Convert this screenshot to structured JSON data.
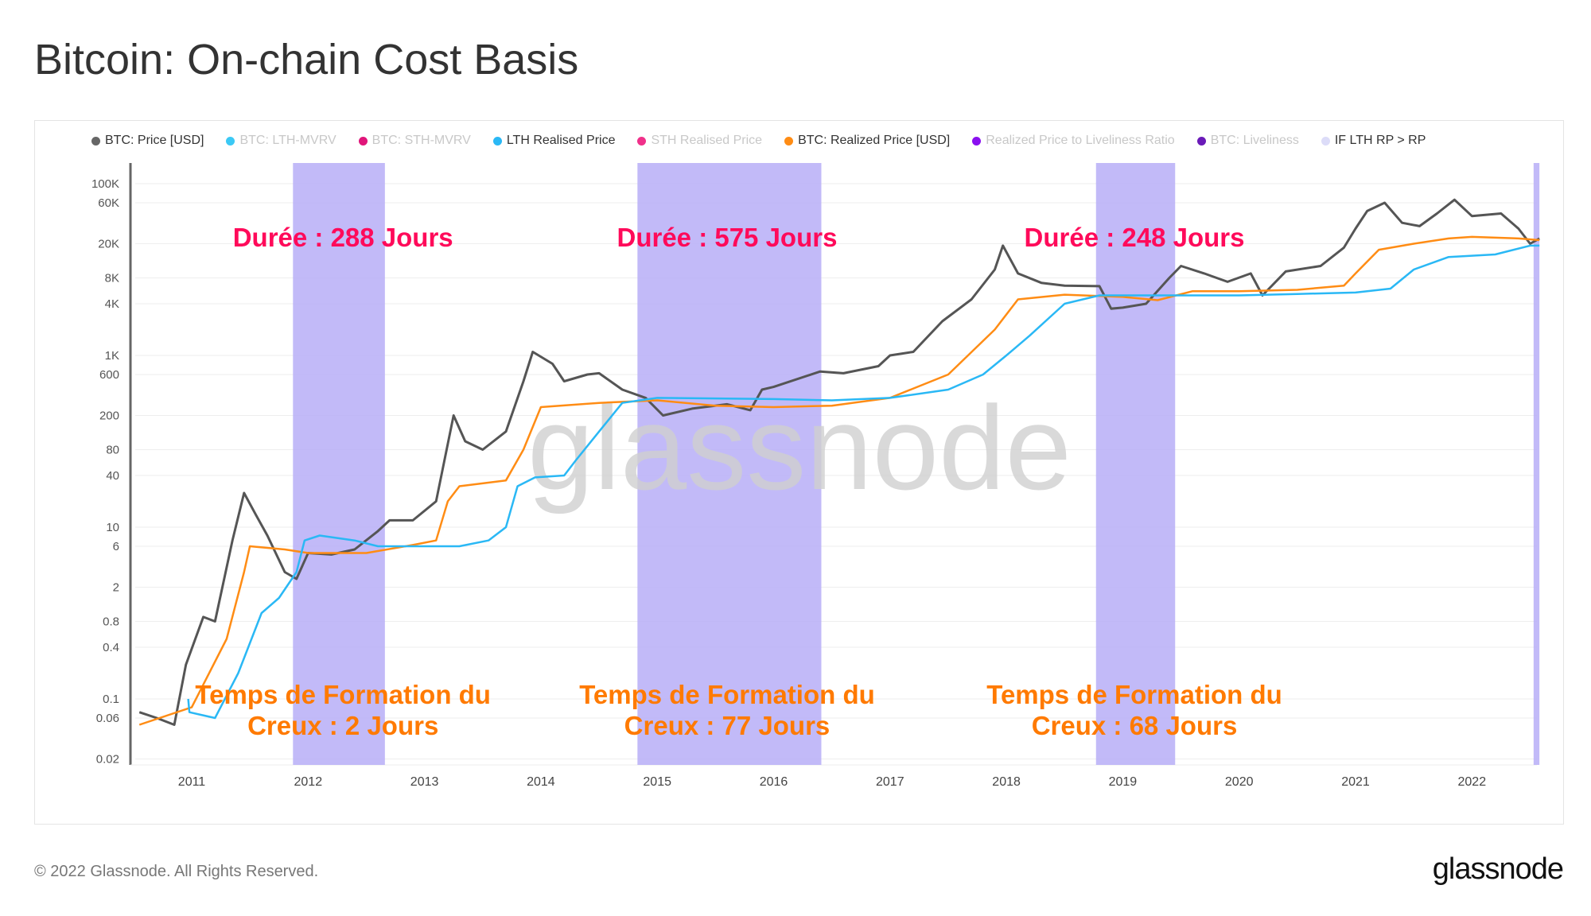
{
  "title": "Bitcoin: On-chain Cost Basis",
  "footer": "© 2022 Glassnode. All Rights Reserved.",
  "logo": "glassnode",
  "watermark": "glassnode",
  "legend": [
    {
      "label": "BTC: Price [USD]",
      "color": "#666666",
      "active": true
    },
    {
      "label": "BTC: LTH-MVRV",
      "color": "#3bc9f5",
      "active": false
    },
    {
      "label": "BTC: STH-MVRV",
      "color": "#e0157a",
      "active": false
    },
    {
      "label": "LTH Realised Price",
      "color": "#2ab8f5",
      "active": true
    },
    {
      "label": "STH Realised Price",
      "color": "#f0308a",
      "active": false
    },
    {
      "label": "BTC: Realized Price [USD]",
      "color": "#ff8c14",
      "active": true
    },
    {
      "label": "Realized Price to Liveliness Ratio",
      "color": "#8a10f0",
      "active": false
    },
    {
      "label": "BTC: Liveliness",
      "color": "#6a1ab8",
      "active": false
    },
    {
      "label": "IF LTH RP > RP",
      "color": "#dcdcf8",
      "active": true
    }
  ],
  "chart_data": {
    "type": "line",
    "title": "Bitcoin: On-chain Cost Basis",
    "yscale": "log",
    "ylim": [
      0.02,
      150000
    ],
    "xlim": [
      2010.5,
      2022.6
    ],
    "y_ticks": [
      "100K",
      "60K",
      "20K",
      "8K",
      "4K",
      "1K",
      "600",
      "200",
      "80",
      "40",
      "10",
      "6",
      "2",
      "0.8",
      "0.4",
      "0.1",
      "0.06",
      "0.02"
    ],
    "y_tick_values": [
      100000,
      60000,
      20000,
      8000,
      4000,
      1000,
      600,
      200,
      80,
      40,
      10,
      6,
      2,
      0.8,
      0.4,
      0.1,
      0.06,
      0.02
    ],
    "x_ticks": [
      "2011",
      "2012",
      "2013",
      "2014",
      "2015",
      "2016",
      "2017",
      "2018",
      "2019",
      "2020",
      "2021",
      "2022"
    ],
    "series": [
      {
        "name": "BTC: Price [USD]",
        "color": "#555555",
        "points": [
          [
            2010.55,
            0.07
          ],
          [
            2010.7,
            0.06
          ],
          [
            2010.85,
            0.05
          ],
          [
            2010.95,
            0.25
          ],
          [
            2011.1,
            0.9
          ],
          [
            2011.2,
            0.8
          ],
          [
            2011.35,
            7
          ],
          [
            2011.45,
            25
          ],
          [
            2011.55,
            14
          ],
          [
            2011.65,
            8
          ],
          [
            2011.8,
            3
          ],
          [
            2011.9,
            2.5
          ],
          [
            2012.0,
            5
          ],
          [
            2012.2,
            4.8
          ],
          [
            2012.4,
            5.5
          ],
          [
            2012.6,
            9
          ],
          [
            2012.7,
            12
          ],
          [
            2012.9,
            12
          ],
          [
            2013.1,
            20
          ],
          [
            2013.25,
            200
          ],
          [
            2013.35,
            100
          ],
          [
            2013.5,
            80
          ],
          [
            2013.7,
            130
          ],
          [
            2013.85,
            500
          ],
          [
            2013.93,
            1100
          ],
          [
            2014.1,
            800
          ],
          [
            2014.2,
            500
          ],
          [
            2014.4,
            600
          ],
          [
            2014.5,
            620
          ],
          [
            2014.7,
            400
          ],
          [
            2014.9,
            320
          ],
          [
            2015.05,
            200
          ],
          [
            2015.3,
            240
          ],
          [
            2015.6,
            270
          ],
          [
            2015.8,
            230
          ],
          [
            2015.9,
            400
          ],
          [
            2016.0,
            430
          ],
          [
            2016.4,
            650
          ],
          [
            2016.6,
            620
          ],
          [
            2016.9,
            750
          ],
          [
            2017.0,
            1000
          ],
          [
            2017.2,
            1100
          ],
          [
            2017.45,
            2500
          ],
          [
            2017.7,
            4500
          ],
          [
            2017.9,
            10000
          ],
          [
            2017.97,
            19000
          ],
          [
            2018.1,
            9000
          ],
          [
            2018.3,
            7000
          ],
          [
            2018.5,
            6500
          ],
          [
            2018.8,
            6400
          ],
          [
            2018.9,
            3500
          ],
          [
            2019.0,
            3600
          ],
          [
            2019.2,
            4000
          ],
          [
            2019.4,
            8000
          ],
          [
            2019.5,
            11000
          ],
          [
            2019.7,
            9000
          ],
          [
            2019.9,
            7200
          ],
          [
            2020.1,
            9000
          ],
          [
            2020.2,
            5000
          ],
          [
            2020.4,
            9500
          ],
          [
            2020.7,
            11000
          ],
          [
            2020.9,
            18000
          ],
          [
            2021.0,
            30000
          ],
          [
            2021.1,
            48000
          ],
          [
            2021.25,
            60000
          ],
          [
            2021.4,
            35000
          ],
          [
            2021.55,
            32000
          ],
          [
            2021.7,
            45000
          ],
          [
            2021.85,
            65000
          ],
          [
            2022.0,
            42000
          ],
          [
            2022.25,
            45000
          ],
          [
            2022.4,
            30000
          ],
          [
            2022.5,
            20000
          ],
          [
            2022.58,
            23000
          ]
        ]
      },
      {
        "name": "BTC: Realized Price [USD]",
        "color": "#ff8c14",
        "points": [
          [
            2010.55,
            0.05
          ],
          [
            2011.0,
            0.08
          ],
          [
            2011.3,
            0.5
          ],
          [
            2011.45,
            3
          ],
          [
            2011.5,
            6
          ],
          [
            2011.8,
            5.5
          ],
          [
            2012.0,
            5
          ],
          [
            2012.5,
            5
          ],
          [
            2012.9,
            6.2
          ],
          [
            2013.1,
            7
          ],
          [
            2013.2,
            20
          ],
          [
            2013.3,
            30
          ],
          [
            2013.7,
            35
          ],
          [
            2013.85,
            80
          ],
          [
            2014.0,
            250
          ],
          [
            2014.5,
            280
          ],
          [
            2015.0,
            300
          ],
          [
            2015.5,
            260
          ],
          [
            2016.0,
            250
          ],
          [
            2016.5,
            260
          ],
          [
            2017.0,
            320
          ],
          [
            2017.5,
            600
          ],
          [
            2017.9,
            2000
          ],
          [
            2018.1,
            4500
          ],
          [
            2018.5,
            5100
          ],
          [
            2019.0,
            4800
          ],
          [
            2019.3,
            4400
          ],
          [
            2019.6,
            5600
          ],
          [
            2020.0,
            5600
          ],
          [
            2020.5,
            5800
          ],
          [
            2020.9,
            6500
          ],
          [
            2021.0,
            9000
          ],
          [
            2021.2,
            17000
          ],
          [
            2021.5,
            20000
          ],
          [
            2021.8,
            23000
          ],
          [
            2022.0,
            24000
          ],
          [
            2022.4,
            23000
          ],
          [
            2022.58,
            22000
          ]
        ]
      },
      {
        "name": "LTH Realised Price",
        "color": "#2ab8f5",
        "points": [
          [
            2010.97,
            0.1
          ],
          [
            2010.98,
            0.07
          ],
          [
            2011.2,
            0.06
          ],
          [
            2011.4,
            0.2
          ],
          [
            2011.6,
            1
          ],
          [
            2011.75,
            1.5
          ],
          [
            2011.9,
            3
          ],
          [
            2011.97,
            7
          ],
          [
            2012.1,
            8
          ],
          [
            2012.4,
            7
          ],
          [
            2012.6,
            6
          ],
          [
            2013.0,
            6
          ],
          [
            2013.3,
            6
          ],
          [
            2013.55,
            7
          ],
          [
            2013.7,
            10
          ],
          [
            2013.8,
            30
          ],
          [
            2013.95,
            38
          ],
          [
            2014.2,
            40
          ],
          [
            2014.3,
            60
          ],
          [
            2014.5,
            130
          ],
          [
            2014.7,
            280
          ],
          [
            2015.0,
            320
          ],
          [
            2016.0,
            310
          ],
          [
            2016.5,
            300
          ],
          [
            2017.0,
            320
          ],
          [
            2017.5,
            400
          ],
          [
            2017.8,
            600
          ],
          [
            2018.0,
            1000
          ],
          [
            2018.2,
            1700
          ],
          [
            2018.5,
            4000
          ],
          [
            2018.8,
            5000
          ],
          [
            2019.5,
            5000
          ],
          [
            2020.0,
            5000
          ],
          [
            2020.5,
            5200
          ],
          [
            2021.0,
            5400
          ],
          [
            2021.3,
            6000
          ],
          [
            2021.5,
            10000
          ],
          [
            2021.8,
            14000
          ],
          [
            2022.2,
            15000
          ],
          [
            2022.5,
            19000
          ],
          [
            2022.58,
            19000
          ]
        ]
      }
    ],
    "shaded_regions": {
      "name": "IF LTH RP > RP",
      "color": "#b7aef7",
      "ranges": [
        [
          2011.87,
          2012.66
        ],
        [
          2014.83,
          2016.41
        ],
        [
          2018.77,
          2019.45
        ],
        [
          2022.53,
          2022.58
        ]
      ]
    },
    "annotations": [
      {
        "text": "Durée : 288 Jours",
        "x": 2012.3,
        "color": "#ff0a5a",
        "row": "top"
      },
      {
        "text": "Durée : 575 Jours",
        "x": 2015.6,
        "color": "#ff0a5a",
        "row": "top"
      },
      {
        "text": "Durée : 248 Jours",
        "x": 2019.1,
        "color": "#ff0a5a",
        "row": "top"
      },
      {
        "text": "Temps de Formation du",
        "x": 2012.3,
        "color": "#ff7a00",
        "row": "bottom1"
      },
      {
        "text": "Creux : 2 Jours",
        "x": 2012.3,
        "color": "#ff7a00",
        "row": "bottom2"
      },
      {
        "text": "Temps de Formation du",
        "x": 2015.6,
        "color": "#ff7a00",
        "row": "bottom1"
      },
      {
        "text": "Creux : 77 Jours",
        "x": 2015.6,
        "color": "#ff7a00",
        "row": "bottom2"
      },
      {
        "text": "Temps de Formation du",
        "x": 2019.1,
        "color": "#ff7a00",
        "row": "bottom1"
      },
      {
        "text": "Creux : 68 Jours",
        "x": 2019.1,
        "color": "#ff7a00",
        "row": "bottom2"
      }
    ]
  }
}
